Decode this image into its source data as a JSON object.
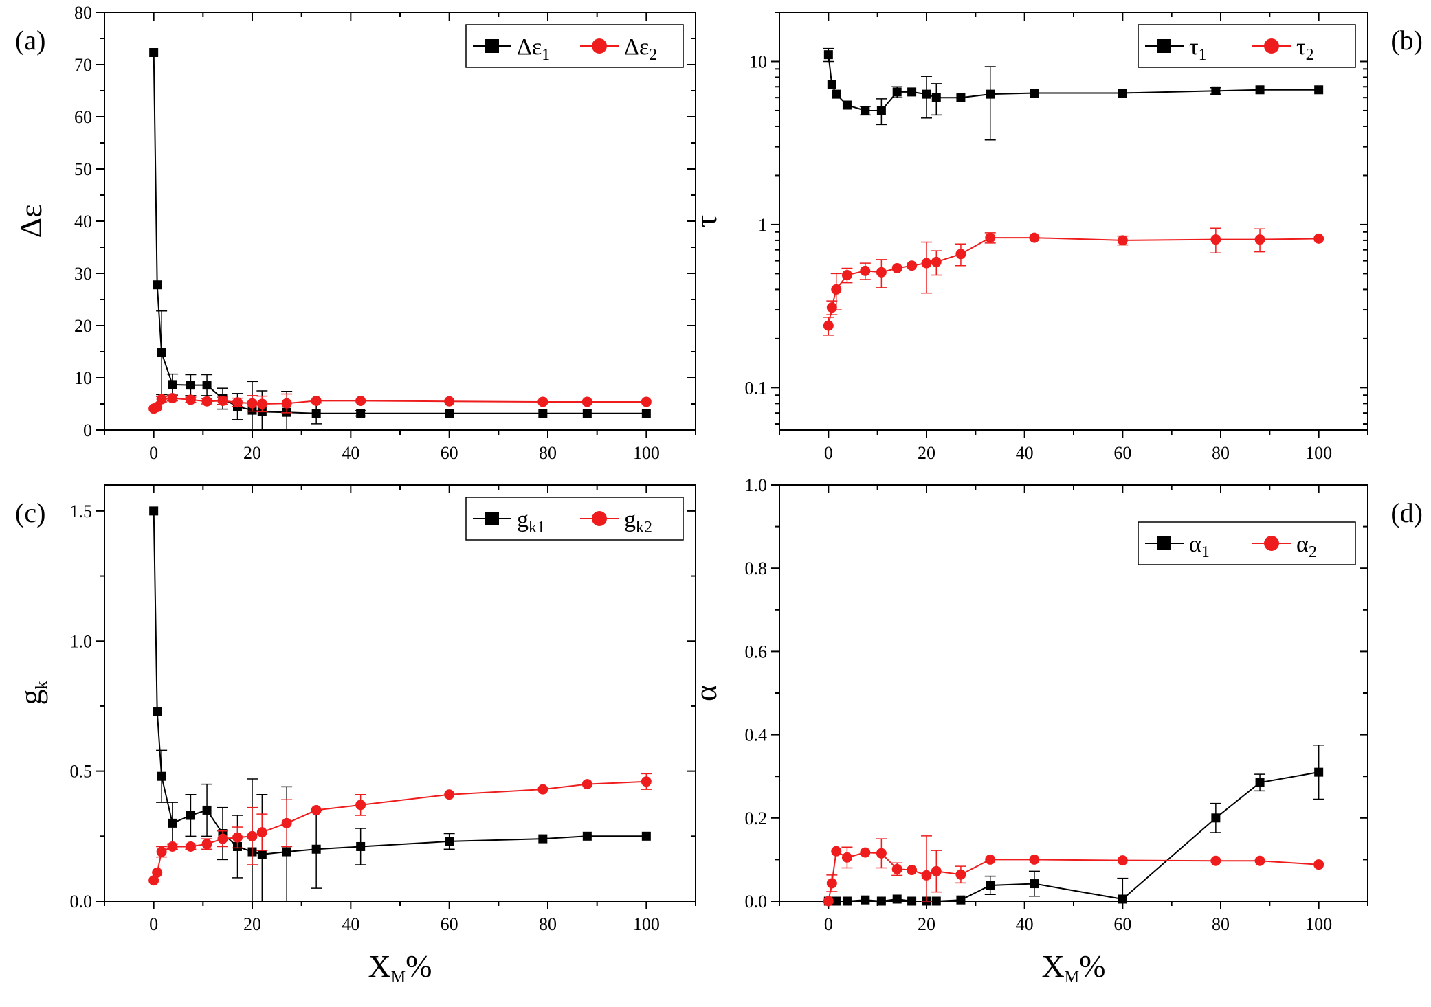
{
  "figure": {
    "xlabel_main": "X",
    "xlabel_sub": "M",
    "xlabel_suffix": "%"
  },
  "colors": {
    "series1": "#000000",
    "series2": "#ee1c1c"
  },
  "chart_data": [
    {
      "id": "a",
      "type": "line",
      "panel_label": "(a)",
      "ylabel_main": "Δε",
      "ylabel_sub": "",
      "yscale": "linear",
      "xlim": [
        -10,
        110
      ],
      "ylim": [
        0,
        80
      ],
      "xticks": [
        0,
        20,
        40,
        60,
        80,
        100
      ],
      "yticks": [
        0,
        10,
        20,
        30,
        40,
        50,
        60,
        70,
        80
      ],
      "ytick_labels": [
        "0",
        "10",
        "20",
        "30",
        "40",
        "50",
        "60",
        "70",
        "80"
      ],
      "legend_position": "top-right",
      "series": [
        {
          "name_main": "Δε",
          "name_sub": "1",
          "marker": "square",
          "x": [
            0,
            0.7,
            1.6,
            3.8,
            7.5,
            10.8,
            14,
            17,
            20,
            22,
            27,
            33,
            42,
            60,
            79,
            88,
            100
          ],
          "y": [
            72.3,
            27.8,
            14.8,
            8.7,
            8.6,
            8.6,
            6.0,
            4.5,
            3.8,
            3.5,
            3.4,
            3.2,
            3.2,
            3.2,
            3.2,
            3.2,
            3.2
          ],
          "err": [
            0,
            0,
            8,
            2,
            2,
            2,
            2,
            2.5,
            5.5,
            4,
            4,
            2,
            0.5,
            0,
            0,
            0,
            0
          ]
        },
        {
          "name_main": "Δε",
          "name_sub": "2",
          "marker": "circle",
          "x": [
            0,
            0.7,
            1.6,
            3.8,
            7.5,
            10.8,
            14,
            17,
            20,
            22,
            27,
            33,
            42,
            60,
            79,
            88,
            100
          ],
          "y": [
            4.1,
            4.4,
            5.9,
            6.1,
            5.8,
            5.5,
            5.6,
            5.3,
            5.1,
            5.0,
            5.1,
            5.6,
            5.6,
            5.5,
            5.4,
            5.4,
            5.4
          ],
          "err": [
            0,
            0,
            0.5,
            0.5,
            0.5,
            0.5,
            0.7,
            0.8,
            1.5,
            1.5,
            1.8,
            0,
            0,
            0,
            0,
            0,
            0
          ]
        }
      ]
    },
    {
      "id": "b",
      "type": "line",
      "panel_label": "(b)",
      "ylabel_main": "τ",
      "ylabel_sub": "",
      "yscale": "log",
      "xlim": [
        -10,
        110
      ],
      "ylim": [
        0.055,
        20
      ],
      "xticks": [
        0,
        20,
        40,
        60,
        80,
        100
      ],
      "yticks": [
        0.1,
        1,
        10
      ],
      "ytick_labels": [
        "0.1",
        "1",
        "10"
      ],
      "legend_position": "top-right",
      "series": [
        {
          "name_main": "τ",
          "name_sub": "1",
          "marker": "square",
          "x": [
            0,
            0.7,
            1.6,
            3.8,
            7.5,
            10.8,
            14,
            17,
            20,
            22,
            27,
            33,
            42,
            60,
            79,
            88,
            100
          ],
          "y": [
            11.0,
            7.2,
            6.3,
            5.4,
            5.0,
            5.0,
            6.5,
            6.5,
            6.3,
            6.0,
            6.0,
            6.3,
            6.4,
            6.4,
            6.6,
            6.7,
            6.7
          ],
          "err": [
            1.0,
            0,
            0,
            0,
            0.3,
            0.9,
            0.5,
            0,
            1.8,
            1.3,
            0,
            3.0,
            0,
            0,
            0.3,
            0,
            0
          ]
        },
        {
          "name_main": "τ",
          "name_sub": "2",
          "marker": "circle",
          "x": [
            0,
            0.7,
            1.6,
            3.8,
            7.5,
            10.8,
            14,
            17,
            20,
            22,
            27,
            33,
            42,
            60,
            79,
            88,
            100
          ],
          "y": [
            0.24,
            0.31,
            0.4,
            0.49,
            0.52,
            0.51,
            0.54,
            0.56,
            0.58,
            0.59,
            0.66,
            0.83,
            0.83,
            0.8,
            0.81,
            0.81,
            0.82
          ],
          "err": [
            0.03,
            0.03,
            0.1,
            0.05,
            0.06,
            0.1,
            0,
            0,
            0.2,
            0.1,
            0.1,
            0.06,
            0,
            0.05,
            0.14,
            0.13,
            0
          ]
        }
      ]
    },
    {
      "id": "c",
      "type": "line",
      "panel_label": "(c)",
      "ylabel_main": "g",
      "ylabel_sub": "k",
      "yscale": "linear",
      "xlim": [
        -10,
        110
      ],
      "ylim": [
        0,
        1.6
      ],
      "xticks": [
        0,
        20,
        40,
        60,
        80,
        100
      ],
      "yticks": [
        0,
        0.5,
        1.0,
        1.5
      ],
      "ytick_labels": [
        "0.0",
        "0.5",
        "1.0",
        "1.5"
      ],
      "legend_position": "top-right",
      "series": [
        {
          "name_main": "g",
          "name_sub": "k1",
          "marker": "square",
          "x": [
            0,
            0.7,
            1.6,
            3.8,
            7.5,
            10.8,
            14,
            17,
            20,
            22,
            27,
            33,
            42,
            60,
            79,
            88,
            100
          ],
          "y": [
            1.5,
            0.73,
            0.48,
            0.3,
            0.33,
            0.35,
            0.26,
            0.21,
            0.19,
            0.18,
            0.19,
            0.2,
            0.21,
            0.23,
            0.24,
            0.25,
            0.25
          ],
          "err": [
            0,
            0,
            0.1,
            0.08,
            0.08,
            0.1,
            0.1,
            0.12,
            0.28,
            0.23,
            0.25,
            0.15,
            0.07,
            0.03,
            0,
            0,
            0
          ]
        },
        {
          "name_main": "g",
          "name_sub": "k2",
          "marker": "circle",
          "x": [
            0,
            0.7,
            1.6,
            3.8,
            7.5,
            10.8,
            14,
            17,
            20,
            22,
            27,
            33,
            42,
            60,
            79,
            88,
            100
          ],
          "y": [
            0.08,
            0.11,
            0.19,
            0.21,
            0.21,
            0.22,
            0.24,
            0.245,
            0.25,
            0.265,
            0.3,
            0.35,
            0.37,
            0.41,
            0.43,
            0.45,
            0.46
          ],
          "err": [
            0,
            0,
            0.02,
            0.01,
            0.01,
            0.02,
            0.03,
            0.04,
            0.11,
            0.07,
            0.09,
            0,
            0.04,
            0,
            0,
            0,
            0.03
          ]
        }
      ]
    },
    {
      "id": "d",
      "type": "line",
      "panel_label": "(d)",
      "ylabel_main": "α",
      "ylabel_sub": "",
      "yscale": "linear",
      "xlim": [
        -10,
        110
      ],
      "ylim": [
        0,
        1.0
      ],
      "xticks": [
        0,
        20,
        40,
        60,
        80,
        100
      ],
      "yticks": [
        0,
        0.2,
        0.4,
        0.6,
        0.8,
        1.0
      ],
      "ytick_labels": [
        "0.0",
        "0.2",
        "0.4",
        "0.6",
        "0.8",
        "1.0"
      ],
      "legend_position": "top-right",
      "series": [
        {
          "name_main": "α",
          "name_sub": "1",
          "marker": "square",
          "x": [
            0,
            1.6,
            3.8,
            7.5,
            10.8,
            14,
            17,
            20,
            22,
            27,
            33,
            42,
            60,
            79,
            88,
            100
          ],
          "y": [
            0,
            0,
            0,
            0.003,
            0,
            0.005,
            0,
            0,
            0,
            0.003,
            0.038,
            0.042,
            0.005,
            0.2,
            0.285,
            0.31
          ],
          "err": [
            0,
            0,
            0,
            0,
            0,
            0,
            0,
            0,
            0,
            0,
            0.022,
            0.03,
            0.05,
            0.035,
            0.02,
            0.065
          ]
        },
        {
          "name_main": "α",
          "name_sub": "2",
          "marker": "circle",
          "x": [
            0,
            0.7,
            1.6,
            3.8,
            7.5,
            10.8,
            14,
            17,
            20,
            22,
            27,
            33,
            42,
            60,
            79,
            88,
            100
          ],
          "y": [
            0.0,
            0.043,
            0.12,
            0.105,
            0.117,
            0.115,
            0.077,
            0.075,
            0.062,
            0.072,
            0.064,
            0.1,
            0.1,
            0.098,
            0.097,
            0.097,
            0.088
          ],
          "err": [
            0,
            0.02,
            0,
            0.025,
            0,
            0.035,
            0.015,
            0,
            0.095,
            0.05,
            0.02,
            0,
            0,
            0,
            0,
            0,
            0
          ]
        }
      ]
    }
  ]
}
